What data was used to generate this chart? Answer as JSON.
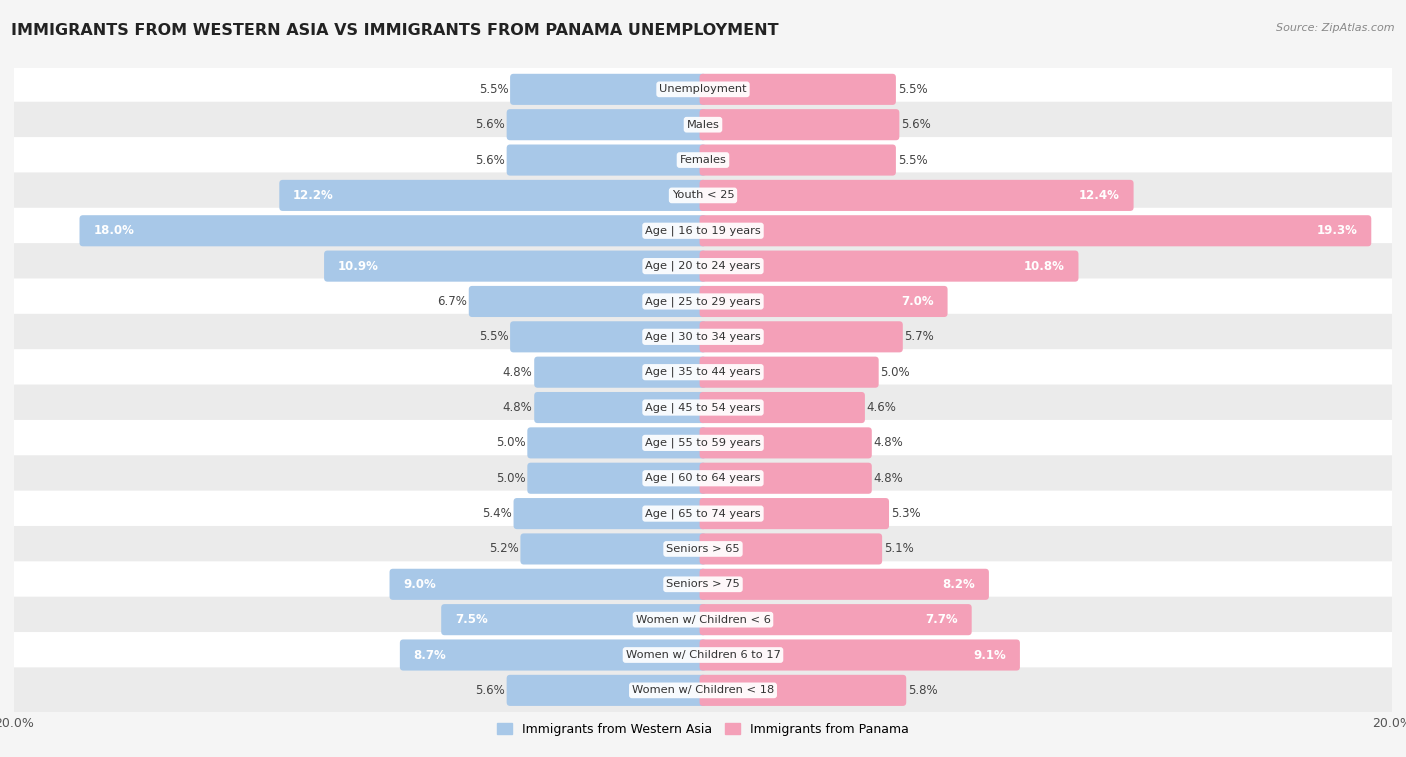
{
  "title": "IMMIGRANTS FROM WESTERN ASIA VS IMMIGRANTS FROM PANAMA UNEMPLOYMENT",
  "source": "Source: ZipAtlas.com",
  "categories": [
    "Unemployment",
    "Males",
    "Females",
    "Youth < 25",
    "Age | 16 to 19 years",
    "Age | 20 to 24 years",
    "Age | 25 to 29 years",
    "Age | 30 to 34 years",
    "Age | 35 to 44 years",
    "Age | 45 to 54 years",
    "Age | 55 to 59 years",
    "Age | 60 to 64 years",
    "Age | 65 to 74 years",
    "Seniors > 65",
    "Seniors > 75",
    "Women w/ Children < 6",
    "Women w/ Children 6 to 17",
    "Women w/ Children < 18"
  ],
  "western_asia": [
    5.5,
    5.6,
    5.6,
    12.2,
    18.0,
    10.9,
    6.7,
    5.5,
    4.8,
    4.8,
    5.0,
    5.0,
    5.4,
    5.2,
    9.0,
    7.5,
    8.7,
    5.6
  ],
  "panama": [
    5.5,
    5.6,
    5.5,
    12.4,
    19.3,
    10.8,
    7.0,
    5.7,
    5.0,
    4.6,
    4.8,
    4.8,
    5.3,
    5.1,
    8.2,
    7.7,
    9.1,
    5.8
  ],
  "western_asia_color": "#a8c8e8",
  "panama_color": "#f4a0b8",
  "row_color_even": "#ffffff",
  "row_color_odd": "#ebebeb",
  "background_color": "#f5f5f5",
  "max_value": 20.0,
  "label_western_asia": "Immigrants from Western Asia",
  "label_panama": "Immigrants from Panama",
  "wa_label_color_high": "#ffffff",
  "wa_label_color_low": "#555555",
  "pa_label_color_high": "#ffffff",
  "pa_label_color_low": "#555555"
}
